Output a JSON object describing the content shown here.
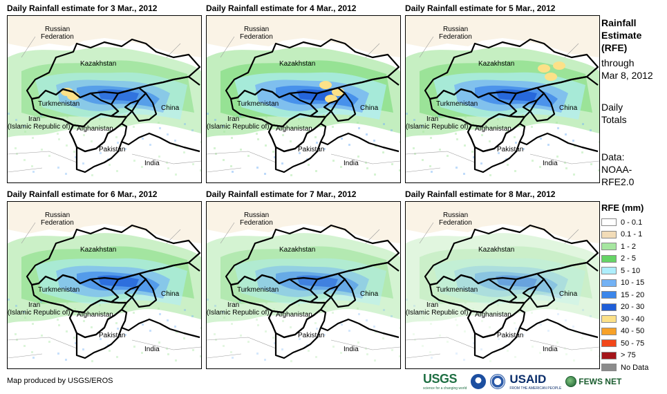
{
  "panels": [
    {
      "title": "Daily Rainfall estimate for 3 Mar., 2012",
      "intensity": 0.75,
      "yellow": [
        [
          95,
          116
        ],
        [
          86,
          110
        ]
      ]
    },
    {
      "title": "Daily Rainfall estimate for 4 Mar., 2012",
      "intensity": 0.95,
      "yellow": [
        [
          172,
          100
        ],
        [
          190,
          110
        ],
        [
          180,
          120
        ]
      ]
    },
    {
      "title": "Daily Rainfall estimate for 5 Mar., 2012",
      "intensity": 0.9,
      "yellow": [
        [
          200,
          76
        ],
        [
          210,
          88
        ],
        [
          222,
          72
        ]
      ]
    },
    {
      "title": "Daily Rainfall estimate for 6 Mar., 2012",
      "intensity": 0.8,
      "yellow": []
    },
    {
      "title": "Daily Rainfall estimate for 7 Mar., 2012",
      "intensity": 0.6,
      "yellow": []
    },
    {
      "title": "Daily Rainfall estimate for 8 Mar., 2012",
      "intensity": 0.35,
      "yellow": []
    }
  ],
  "map_labels": {
    "russia": "Russian\nFederation",
    "kazakhstan": "Kazakhstan",
    "turkmenistan": "Turkmenistan",
    "china": "China",
    "iran": "Iran\n(Islamic Republic of)",
    "afghanistan": "Afghanistan",
    "pakistan": "Pakistan",
    "india": "India"
  },
  "sidebar": {
    "title": "Rainfall\nEstimate\n(RFE)",
    "through": "through\nMar 8, 2012",
    "totals": "Daily\nTotals",
    "data": "Data:\nNOAA-\nRFE2.0"
  },
  "legend": {
    "title": "RFE (mm)",
    "items": [
      {
        "label": "0 - 0.1",
        "color": "#ffffff"
      },
      {
        "label": "0.1 - 1",
        "color": "#f2dcb8"
      },
      {
        "label": "1 - 2",
        "color": "#a6e6a0"
      },
      {
        "label": "2 - 5",
        "color": "#66d466"
      },
      {
        "label": "5 - 10",
        "color": "#aeeefc"
      },
      {
        "label": "10 - 15",
        "color": "#73b2f5"
      },
      {
        "label": "15 - 20",
        "color": "#3c86ea"
      },
      {
        "label": "20 - 30",
        "color": "#1f5ed8"
      },
      {
        "label": "30 - 40",
        "color": "#fce188"
      },
      {
        "label": "40 - 50",
        "color": "#f7a128"
      },
      {
        "label": "50 - 75",
        "color": "#f2471a"
      },
      {
        "label": "> 75",
        "color": "#a4151a"
      },
      {
        "label": "No Data",
        "color": "#8c8c8c"
      }
    ]
  },
  "footer": {
    "credit": "Map produced by USGS/EROS",
    "logos": {
      "usgs": "USGS",
      "usgs_tagline": "science for a changing world",
      "usaid": "USAID",
      "usaid_tagline": "FROM THE AMERICAN PEOPLE",
      "fews": "FEWS NET"
    }
  }
}
